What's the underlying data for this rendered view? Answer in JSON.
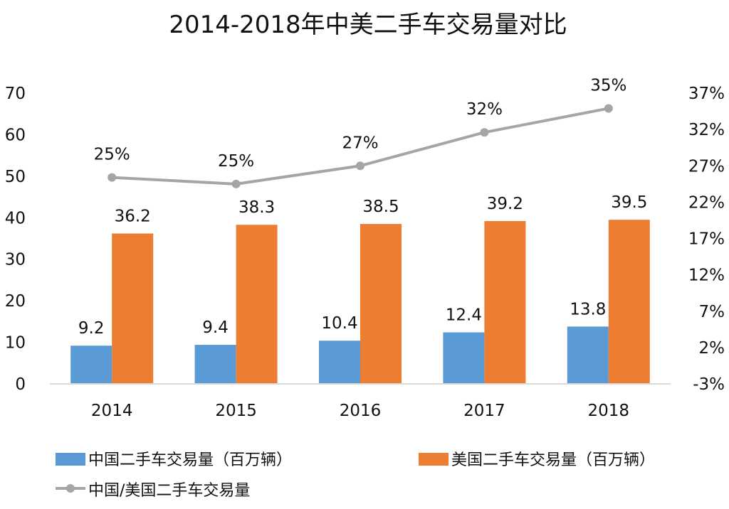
{
  "chart_data": {
    "type": "bar",
    "title": "2014-2018年中美二手车交易量对比",
    "categories": [
      "2014",
      "2015",
      "2016",
      "2017",
      "2018"
    ],
    "series": [
      {
        "name": "中国二手车交易量（百万辆）",
        "kind": "bar",
        "axis": "left",
        "color": "#5b9bd5",
        "values": [
          9.2,
          9.4,
          10.4,
          12.4,
          13.8
        ],
        "labels": [
          "9.2",
          "9.4",
          "10.4",
          "12.4",
          "13.8"
        ]
      },
      {
        "name": "美国二手车交易量（百万辆）",
        "kind": "bar",
        "axis": "left",
        "color": "#ed7d31",
        "values": [
          36.2,
          38.3,
          38.5,
          39.2,
          39.5
        ],
        "labels": [
          "36.2",
          "38.3",
          "38.5",
          "39.2",
          "39.5"
        ]
      },
      {
        "name": "中国/美国二手车交易量",
        "kind": "line",
        "axis": "right",
        "color": "#a5a5a5",
        "values": [
          25.4,
          24.5,
          27.0,
          31.6,
          34.9
        ],
        "labels": [
          "25%",
          "25%",
          "27%",
          "32%",
          "35%"
        ]
      }
    ],
    "y_left": {
      "min": 0,
      "max": 70,
      "step": 10,
      "ticks": [
        "0",
        "10",
        "20",
        "30",
        "40",
        "50",
        "60",
        "70"
      ]
    },
    "y_right": {
      "min": -3,
      "max": 37,
      "step": 5,
      "ticks": [
        "-3%",
        "2%",
        "7%",
        "12%",
        "17%",
        "22%",
        "27%",
        "32%",
        "37%"
      ]
    },
    "legend_position": "bottom",
    "grid": false
  }
}
